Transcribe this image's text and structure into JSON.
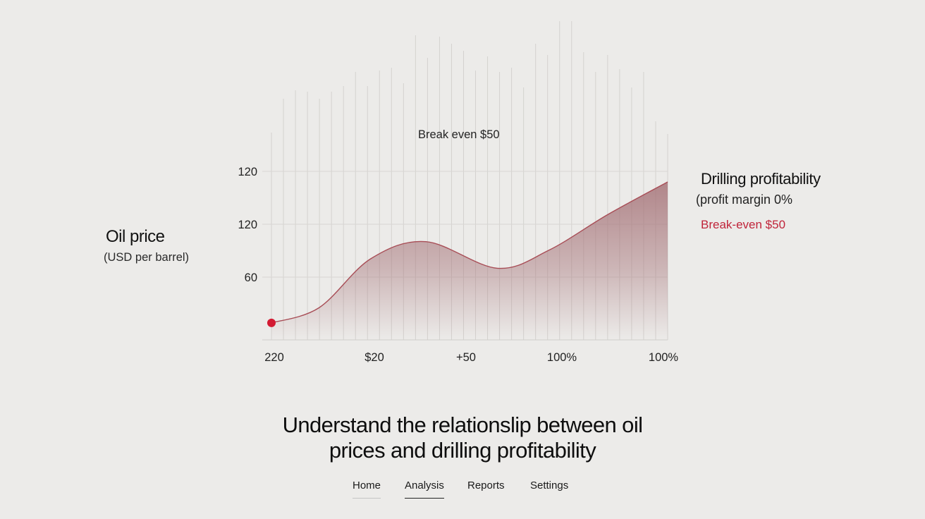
{
  "chart_data": {
    "type": "area",
    "ylabel": "Oil price",
    "ylabel_unit": "(USD per barrel)",
    "y_ticks": [
      "120",
      "120",
      "60"
    ],
    "x_ticks": [
      "220",
      "$20",
      "+50",
      "100%",
      "100%"
    ],
    "series": [
      {
        "name": "Drilling profitability",
        "x": [
          0.0,
          0.12,
          0.25,
          0.39,
          0.57,
          0.7,
          0.85,
          1.0
        ],
        "y": [
          4,
          25,
          93,
          117,
          80,
          105,
          155,
          200
        ],
        "color": "#b07a7f",
        "start_marker_color": "#d31a32"
      }
    ],
    "annotations": {
      "top_label": "Break even $50",
      "right_title": "Drilling profitability",
      "right_subtitle": "(profit margin 0%",
      "right_breakeven": "Break-even $50"
    },
    "grid": true
  },
  "headline": {
    "line1": "Understand the relationslip between oil",
    "line2": "prices and drilling profitability"
  },
  "nav": {
    "items": [
      "Home",
      "Analysis",
      "Reports",
      "Settings"
    ],
    "active": "Analysis"
  },
  "colors": {
    "background": "#ecebe9",
    "area_fill": "#a67479",
    "line": "#a84d56",
    "marker": "#d31a32",
    "breakeven_text": "#c0243a"
  }
}
